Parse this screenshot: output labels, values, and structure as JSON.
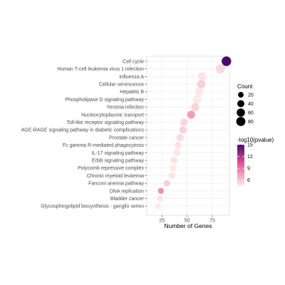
{
  "chart_data": {
    "type": "scatter",
    "xlabel": "Number of Genes",
    "ylabel": "",
    "xlim": [
      10,
      92
    ],
    "x_ticks": [
      25,
      50,
      75
    ],
    "grid": true,
    "colors": {
      "low": "#fdecea",
      "mid": "#e8609a",
      "high": "#4a0a6b"
    },
    "color_legend": {
      "title": "-log10(pvalue)",
      "min": 4.5,
      "max": 15,
      "ticks": [
        6,
        9,
        12,
        15
      ]
    },
    "size_legend": {
      "title": "Count",
      "values": [
        20,
        40,
        60,
        80
      ]
    },
    "categories": [
      "Cell cycle",
      "Human T-cell leukemia virus 1 infection",
      "Influenza A",
      "Cellular senescence",
      "Hepatitis B",
      "Phospholipase D signaling pathway",
      "Yersinia infection",
      "Nucleocytoplasmic transport",
      "Toll-like receptor signaling pathway",
      "AGE-RAGE signaling pathway in diabetic complications",
      "Prostate cancer",
      "Fc gamma R-mediated phagocytosis",
      "IL-17 signaling pathway",
      "ErbB signaling pathway",
      "Polycomb repressive complex",
      "Chronic myeloid leukemia",
      "Fanconi anemia pathway",
      "DNA replication",
      "Bladder cancer",
      "Glycosphingolipid biosynthesis - ganglio series"
    ],
    "series": [
      {
        "x": 89,
        "count": 89,
        "pvalue_log": 15.0
      },
      {
        "x": 83,
        "count": 83,
        "pvalue_log": 5.2
      },
      {
        "x": 65,
        "count": 65,
        "pvalue_log": 4.8
      },
      {
        "x": 64,
        "count": 64,
        "pvalue_log": 5.6
      },
      {
        "x": 62,
        "count": 62,
        "pvalue_log": 4.7
      },
      {
        "x": 60,
        "count": 60,
        "pvalue_log": 4.6
      },
      {
        "x": 58,
        "count": 58,
        "pvalue_log": 5.4
      },
      {
        "x": 54,
        "count": 54,
        "pvalue_log": 7.5
      },
      {
        "x": 47,
        "count": 47,
        "pvalue_log": 5.3
      },
      {
        "x": 46,
        "count": 46,
        "pvalue_log": 5.5
      },
      {
        "x": 43,
        "count": 43,
        "pvalue_log": 5.1
      },
      {
        "x": 41,
        "count": 41,
        "pvalue_log": 4.8
      },
      {
        "x": 40,
        "count": 40,
        "pvalue_log": 4.7
      },
      {
        "x": 37,
        "count": 37,
        "pvalue_log": 4.9
      },
      {
        "x": 36,
        "count": 36,
        "pvalue_log": 4.6
      },
      {
        "x": 35,
        "count": 35,
        "pvalue_log": 4.7
      },
      {
        "x": 30,
        "count": 30,
        "pvalue_log": 5.6
      },
      {
        "x": 24,
        "count": 24,
        "pvalue_log": 8.0
      },
      {
        "x": 23,
        "count": 23,
        "pvalue_log": 4.8
      },
      {
        "x": 21,
        "count": 21,
        "pvalue_log": 4.6
      }
    ]
  }
}
